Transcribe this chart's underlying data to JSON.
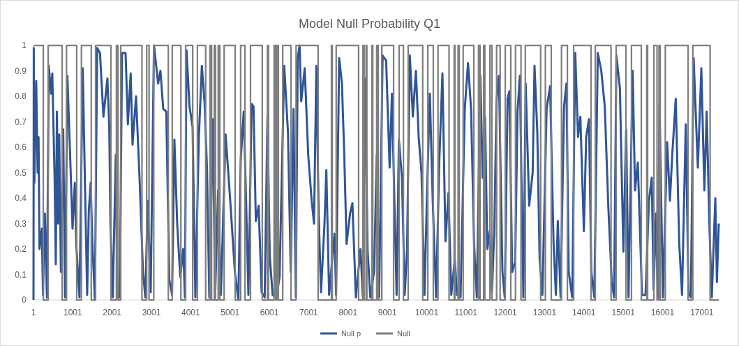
{
  "chart_data": {
    "type": "line",
    "title": "Model Null Probability Q1",
    "xlim": [
      1,
      17430
    ],
    "xticks": [
      1,
      1001,
      2001,
      3001,
      4001,
      5001,
      6001,
      7001,
      8001,
      9001,
      10001,
      11001,
      12001,
      13001,
      14001,
      15001,
      16001,
      17001
    ],
    "ylim": [
      0,
      1
    ],
    "yticks": [
      0,
      0.1,
      0.2,
      0.3,
      0.4,
      0.5,
      0.6,
      0.7,
      0.8,
      0.9,
      1
    ],
    "grid": false,
    "legend": "bottom",
    "marker": "none",
    "series": [
      {
        "name": "Null p",
        "color": "#2f5597",
        "x": [
          1,
          8,
          23,
          70,
          106,
          130,
          153,
          213,
          242,
          290,
          343,
          390,
          449,
          479,
          538,
          568,
          597,
          627,
          656,
          698,
          757,
          804,
          863,
          952,
          994,
          1053,
          1088,
          1171,
          1254,
          1307,
          1366,
          1408,
          1455,
          1502,
          1562,
          1621,
          1692,
          1780,
          1881,
          1928,
          1958,
          2017,
          2094,
          2136,
          2195,
          2254,
          2343,
          2402,
          2473,
          2520,
          2609,
          2698,
          2786,
          2846,
          2905,
          2982,
          3065,
          3171,
          3230,
          3301,
          3378,
          3455,
          3526,
          3585,
          3656,
          3733,
          3810,
          3852,
          3893,
          3970,
          4047,
          4118,
          4207,
          4283,
          4354,
          4413,
          4473,
          4561,
          4620,
          4697,
          4768,
          4887,
          5005,
          5123,
          5212,
          5272,
          5348,
          5408,
          5467,
          5550,
          5597,
          5656,
          5727,
          5804,
          5881,
          5952,
          6011,
          6082,
          6177,
          6260,
          6378,
          6473,
          6544,
          6615,
          6674,
          6721,
          6769,
          6810,
          6899,
          6988,
          7076,
          7136,
          7195,
          7254,
          7313,
          7402,
          7449,
          7520,
          7656,
          7698,
          7775,
          7846,
          7905,
          7964,
          8053,
          8112,
          8200,
          8319,
          8378,
          8437,
          8497,
          8567,
          8662,
          8733,
          8792,
          8881,
          8970,
          9059,
          9118,
          9177,
          9236,
          9295,
          9372,
          9443,
          9502,
          9573,
          9650,
          9727,
          9798,
          9869,
          9946,
          10005,
          10082,
          10153,
          10242,
          10319,
          10402,
          10479,
          10556,
          10627,
          10716,
          10775,
          10863,
          10970,
          11053,
          11130,
          11207,
          11277,
          11366,
          11425,
          11485,
          11543,
          11602,
          11661,
          11720,
          11780,
          11839,
          11928,
          11987,
          12058,
          12105,
          12176,
          12253,
          12312,
          12371,
          12460,
          12519,
          12608,
          12697,
          12744,
          12815,
          12874,
          12945,
          13052,
          13140,
          13229,
          13288,
          13336,
          13407,
          13495,
          13555,
          13614,
          13703,
          13780,
          13851,
          13910,
          13999,
          14058,
          14129,
          14188,
          14265,
          14353,
          14442,
          14531,
          14620,
          14709,
          14768,
          14827,
          14916,
          15004,
          15075,
          15135,
          15241,
          15300,
          15371,
          15478,
          15567,
          15655,
          15726,
          15773,
          15833,
          15880,
          15922,
          16010,
          16117,
          16188,
          16247,
          16336,
          16425,
          16496,
          16590,
          16661,
          16720,
          16791,
          16898,
          16987,
          17064,
          17123,
          17194,
          17253,
          17342,
          17383,
          17430
        ],
        "values": [
          0,
          0.99,
          0.46,
          0.86,
          0.5,
          0.64,
          0.2,
          0.28,
          0.02,
          0.34,
          0.01,
          0.92,
          0.81,
          0.89,
          0.48,
          0.14,
          0.74,
          0.3,
          0.65,
          0.11,
          0.67,
          0.01,
          0.88,
          0.48,
          0.28,
          0.46,
          0.22,
          0.01,
          0.91,
          0.48,
          0.02,
          0.35,
          0.46,
          0.21,
          0,
          0.99,
          0.97,
          0.72,
          0.87,
          0.68,
          0.3,
          0.01,
          0.57,
          0.01,
          0.01,
          0.97,
          0.97,
          0.69,
          0.89,
          0.61,
          0.8,
          0.48,
          0.11,
          0.01,
          0.39,
          0.03,
          1,
          0.85,
          0.9,
          0.75,
          0.74,
          0.08,
          0.02,
          0.63,
          0.3,
          0.09,
          0.2,
          0.01,
          0.98,
          0.76,
          0.68,
          0.01,
          0.64,
          0.92,
          0.77,
          0.52,
          0.01,
          0.71,
          0.01,
          0.43,
          0.02,
          0.65,
          0.39,
          0.11,
          0,
          0.55,
          0.74,
          0.39,
          0.02,
          0.77,
          0.76,
          0.31,
          0.37,
          0.03,
          0.01,
          0.72,
          0.17,
          0.02,
          0.01,
          0.09,
          0.92,
          0.66,
          0.11,
          0.75,
          0.01,
          0.95,
          1,
          0.78,
          0.91,
          0.57,
          0.39,
          0.3,
          0.92,
          0.34,
          0.03,
          0.3,
          0.51,
          0.02,
          0.26,
          0.02,
          0.95,
          0.85,
          0.57,
          0.22,
          0.34,
          0.38,
          0.01,
          0.2,
          0.01,
          0.87,
          0.2,
          0.01,
          0.11,
          0.57,
          0.01,
          0.96,
          0.94,
          0.52,
          0.81,
          0.41,
          0.02,
          0.63,
          0.48,
          0.02,
          0.2,
          0.96,
          0.72,
          0.9,
          0.64,
          0.5,
          0.02,
          0.39,
          0.81,
          0.4,
          0.01,
          0.53,
          0.89,
          0.23,
          0.42,
          0.02,
          0.16,
          0.02,
          0.01,
          0.75,
          0.93,
          0.75,
          0.22,
          0.01,
          0.88,
          0.48,
          0.72,
          0.2,
          0.27,
          0.03,
          0.27,
          0.79,
          0.88,
          0.11,
          0.01,
          0.79,
          0.82,
          0.11,
          0.15,
          0.74,
          0.88,
          0.01,
          0.85,
          0.37,
          0.5,
          0.92,
          0.66,
          0.16,
          0.02,
          0.75,
          0.84,
          0.22,
          0.02,
          0.31,
          0.01,
          0.76,
          0.85,
          0.11,
          0.01,
          0.97,
          0.64,
          0.72,
          0.27,
          0.64,
          0.71,
          0.11,
          0.01,
          0.97,
          0.9,
          0.76,
          0.37,
          0.07,
          0.01,
          0.96,
          0.83,
          0.19,
          0.67,
          0.01,
          0.9,
          0.43,
          0.54,
          0.02,
          0.02,
          0.39,
          0.48,
          0.04,
          0.34,
          0.01,
          0.77,
          0.01,
          0.62,
          0.39,
          0.57,
          0.79,
          0.22,
          0.02,
          0.69,
          0.03,
          0.01,
          0.95,
          0.52,
          0.91,
          0.43,
          0.74,
          0.28,
          0.01,
          0.4,
          0.07,
          0.3
        ]
      },
      {
        "name": "Null",
        "type": "step",
        "color": "#7f7f7f",
        "x": [
          1,
          250,
          375,
          730,
          840,
          1100,
          1220,
          1470,
          1580,
          1970,
          2110,
          2150,
          2220,
          2760,
          2880,
          2940,
          3060,
          3430,
          3530,
          3750,
          3870,
          4050,
          4170,
          4380,
          4490,
          4530,
          4600,
          4630,
          4700,
          4740,
          4850,
          5130,
          5270,
          5380,
          5520,
          5820,
          5950,
          5980,
          6120,
          6160,
          6200,
          6230,
          6340,
          6550,
          6680,
          7240,
          7580,
          7600,
          7700,
          8270,
          8380,
          8410,
          8460,
          8480,
          8610,
          8630,
          8730,
          8770,
          8860,
          9160,
          9300,
          9410,
          9530,
          9900,
          10030,
          10170,
          10290,
          10570,
          10700,
          10720,
          10800,
          10830,
          10930,
          11200,
          11320,
          11360,
          11450,
          11480,
          11610,
          11660,
          11780,
          11870,
          12000,
          12140,
          12260,
          12400,
          12510,
          12900,
          13020,
          13170,
          13430,
          13580,
          13740,
          14180,
          14290,
          14690,
          14820,
          15070,
          15210,
          15460,
          15600,
          15620,
          15780,
          15860,
          15910,
          15940,
          16070,
          16650,
          16770,
          17210,
          17430
        ],
        "values": [
          1,
          0,
          1,
          0,
          1,
          0,
          1,
          0,
          1,
          0,
          1,
          0,
          1,
          0,
          1,
          0,
          1,
          0,
          1,
          0,
          1,
          0,
          1,
          0,
          1,
          0,
          1,
          0,
          1,
          0,
          1,
          0,
          1,
          0,
          1,
          0,
          1,
          0,
          1,
          0,
          1,
          0,
          1,
          0,
          1,
          0,
          1,
          0,
          1,
          0,
          1,
          0,
          1,
          0,
          1,
          0,
          1,
          0,
          1,
          0,
          1,
          0,
          1,
          0,
          1,
          0,
          1,
          0,
          1,
          0,
          1,
          0,
          1,
          0,
          1,
          0,
          1,
          0,
          1,
          0,
          1,
          0,
          1,
          0,
          1,
          0,
          1,
          0,
          1,
          0,
          1,
          0,
          1,
          0,
          1,
          0,
          1,
          0,
          1,
          0,
          1,
          0,
          1,
          0,
          1,
          0,
          1,
          0,
          1,
          0,
          0
        ]
      }
    ]
  }
}
